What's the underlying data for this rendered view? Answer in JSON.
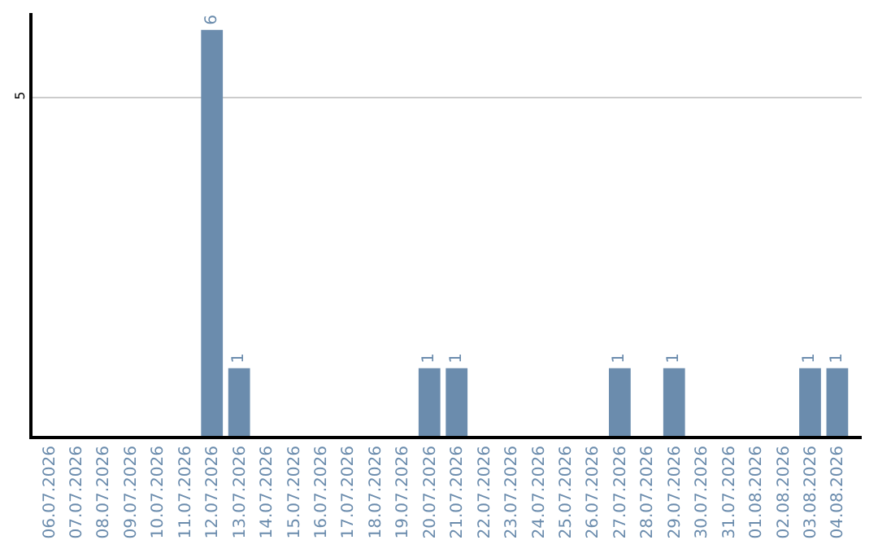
{
  "chart_data": {
    "type": "bar",
    "categories": [
      "06.07.2026",
      "07.07.2026",
      "08.07.2026",
      "09.07.2026",
      "10.07.2026",
      "11.07.2026",
      "12.07.2026",
      "13.07.2026",
      "14.07.2026",
      "15.07.2026",
      "16.07.2026",
      "17.07.2026",
      "18.07.2026",
      "19.07.2026",
      "20.07.2026",
      "21.07.2026",
      "22.07.2026",
      "23.07.2026",
      "24.07.2026",
      "25.07.2026",
      "26.07.2026",
      "27.07.2026",
      "28.07.2026",
      "29.07.2026",
      "30.07.2026",
      "31.07.2026",
      "01.08.2026",
      "02.08.2026",
      "03.08.2026",
      "04.08.2026"
    ],
    "values": [
      0,
      0,
      0,
      0,
      0,
      0,
      6,
      1,
      0,
      0,
      0,
      0,
      0,
      0,
      1,
      1,
      0,
      0,
      0,
      0,
      0,
      1,
      0,
      1,
      0,
      0,
      0,
      0,
      1,
      1
    ],
    "value_labels": [
      null,
      null,
      null,
      null,
      null,
      null,
      "6",
      "1",
      null,
      null,
      null,
      null,
      null,
      null,
      "1",
      "1",
      null,
      null,
      null,
      null,
      null,
      "1",
      null,
      "1",
      null,
      null,
      null,
      null,
      "1",
      "1"
    ],
    "color": "#6b8cad",
    "ylim": [
      0,
      6.25
    ],
    "yticks": [
      5
    ],
    "grid": "y",
    "legend": false
  }
}
